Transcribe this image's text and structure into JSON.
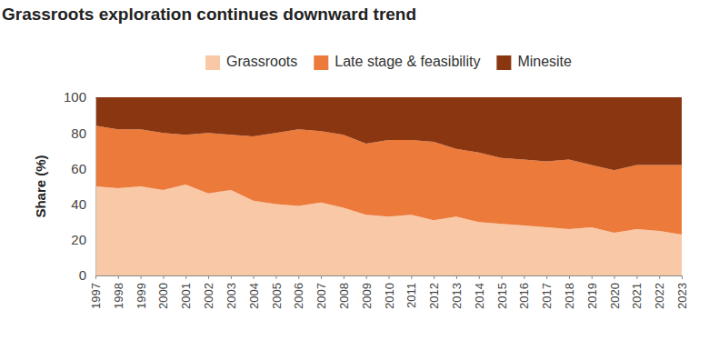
{
  "chart_data": {
    "type": "area",
    "title": "Grassroots exploration continues downward trend",
    "y_label": "Share (%)",
    "categories": [
      "1997",
      "1998",
      "1999",
      "2000",
      "2001",
      "2002",
      "2003",
      "2004",
      "2005",
      "2006",
      "2007",
      "2008",
      "2009",
      "2010",
      "2011",
      "2012",
      "2013",
      "2014",
      "2015",
      "2016",
      "2017",
      "2018",
      "2019",
      "2020",
      "2021",
      "2022",
      "2023"
    ],
    "series": [
      {
        "name": "Grassroots",
        "color": "#f9c9a7",
        "values": [
          50,
          49,
          50,
          48,
          51,
          46,
          48,
          42,
          40,
          39,
          41,
          38,
          34,
          33,
          34,
          31,
          33,
          30,
          29,
          28,
          27,
          26,
          27,
          24,
          26,
          25,
          23
        ]
      },
      {
        "name": "Late stage & feasibility",
        "color": "#ec7a3b",
        "values": [
          34,
          33,
          32,
          32,
          28,
          34,
          31,
          36,
          40,
          43,
          40,
          41,
          40,
          43,
          42,
          44,
          38,
          39,
          37,
          37,
          37,
          39,
          35,
          35,
          36,
          37,
          39
        ]
      },
      {
        "name": "Minesite",
        "color": "#8a3611",
        "values": [
          16,
          18,
          18,
          20,
          21,
          20,
          21,
          22,
          20,
          18,
          19,
          21,
          26,
          24,
          24,
          25,
          29,
          31,
          34,
          35,
          36,
          35,
          38,
          41,
          38,
          38,
          38
        ]
      }
    ],
    "ylim": [
      0,
      100
    ],
    "yticks": [
      0,
      20,
      40,
      60,
      80,
      100
    ],
    "stacked": true,
    "grid": false,
    "legend": "top"
  }
}
